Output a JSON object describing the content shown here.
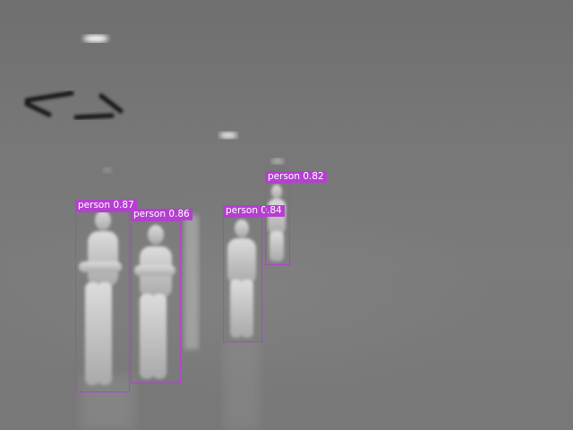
{
  "image": {
    "kind": "thermal-infrared-frame",
    "palette": "grayscale"
  },
  "detections": [
    {
      "label": "person",
      "score": "0.87",
      "text": "person 0.87"
    },
    {
      "label": "person",
      "score": "0.86",
      "text": "person 0.86"
    },
    {
      "label": "person",
      "score": "0.84",
      "text": "person 0.84"
    },
    {
      "label": "person",
      "score": "0.82",
      "text": "person 0.82"
    }
  ],
  "colors": {
    "box": "#b53fd0",
    "label_text": "#ffffff"
  }
}
